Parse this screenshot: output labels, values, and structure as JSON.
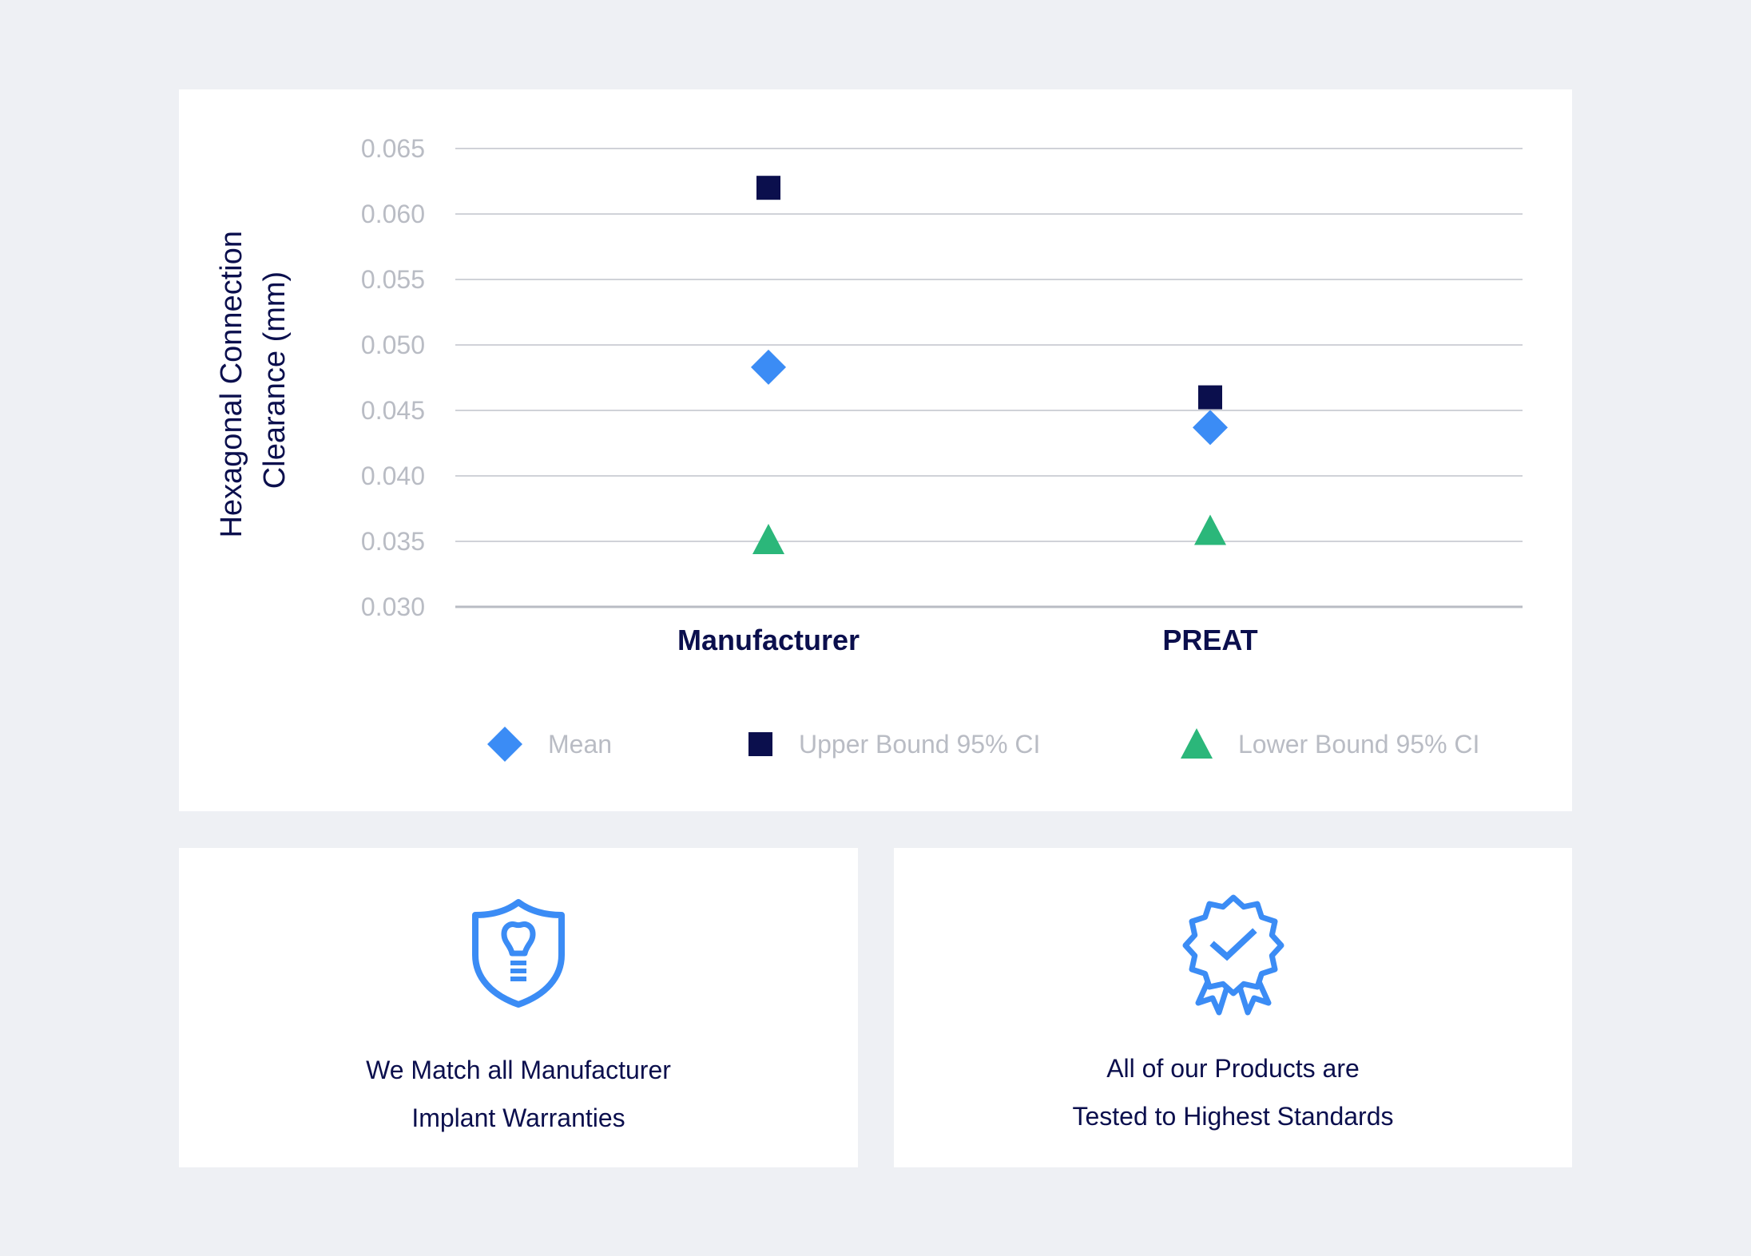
{
  "chart_data": {
    "type": "scatter",
    "categories": [
      "Manufacturer",
      "PREAT"
    ],
    "series": [
      {
        "name": "Mean",
        "marker": "diamond",
        "color": "#3b8cf5",
        "values": [
          0.0483,
          0.0437
        ]
      },
      {
        "name": "Upper Bound 95% CI",
        "marker": "square",
        "color": "#0b0f4d",
        "values": [
          0.062,
          0.046
        ]
      },
      {
        "name": "Lower Bound 95% CI",
        "marker": "triangle",
        "color": "#2bb77a",
        "values": [
          0.035,
          0.0357
        ]
      }
    ],
    "ylabel_lines": [
      "Hexagonal Connection",
      "Clearance (mm)"
    ],
    "ylim": [
      0.03,
      0.065
    ],
    "yticks": [
      "0.065",
      "0.060",
      "0.055",
      "0.050",
      "0.045",
      "0.040",
      "0.035",
      "0.030"
    ],
    "grid": true,
    "legend_position": "bottom"
  },
  "features": {
    "warranty": {
      "icon": "shield-implant-icon",
      "lines": [
        "We Match all Manufacturer",
        "Implant Warranties"
      ]
    },
    "standards": {
      "icon": "award-badge-check-icon",
      "lines": [
        "All of our Products are",
        "Tested to Highest Standards"
      ]
    }
  },
  "colors": {
    "background": "#eef0f4",
    "card": "#ffffff",
    "navy": "#0b0f4d",
    "blue": "#3b8cf5",
    "green": "#2bb77a",
    "grid": "#d0d2d8",
    "muted_text": "#b9bcc4"
  }
}
